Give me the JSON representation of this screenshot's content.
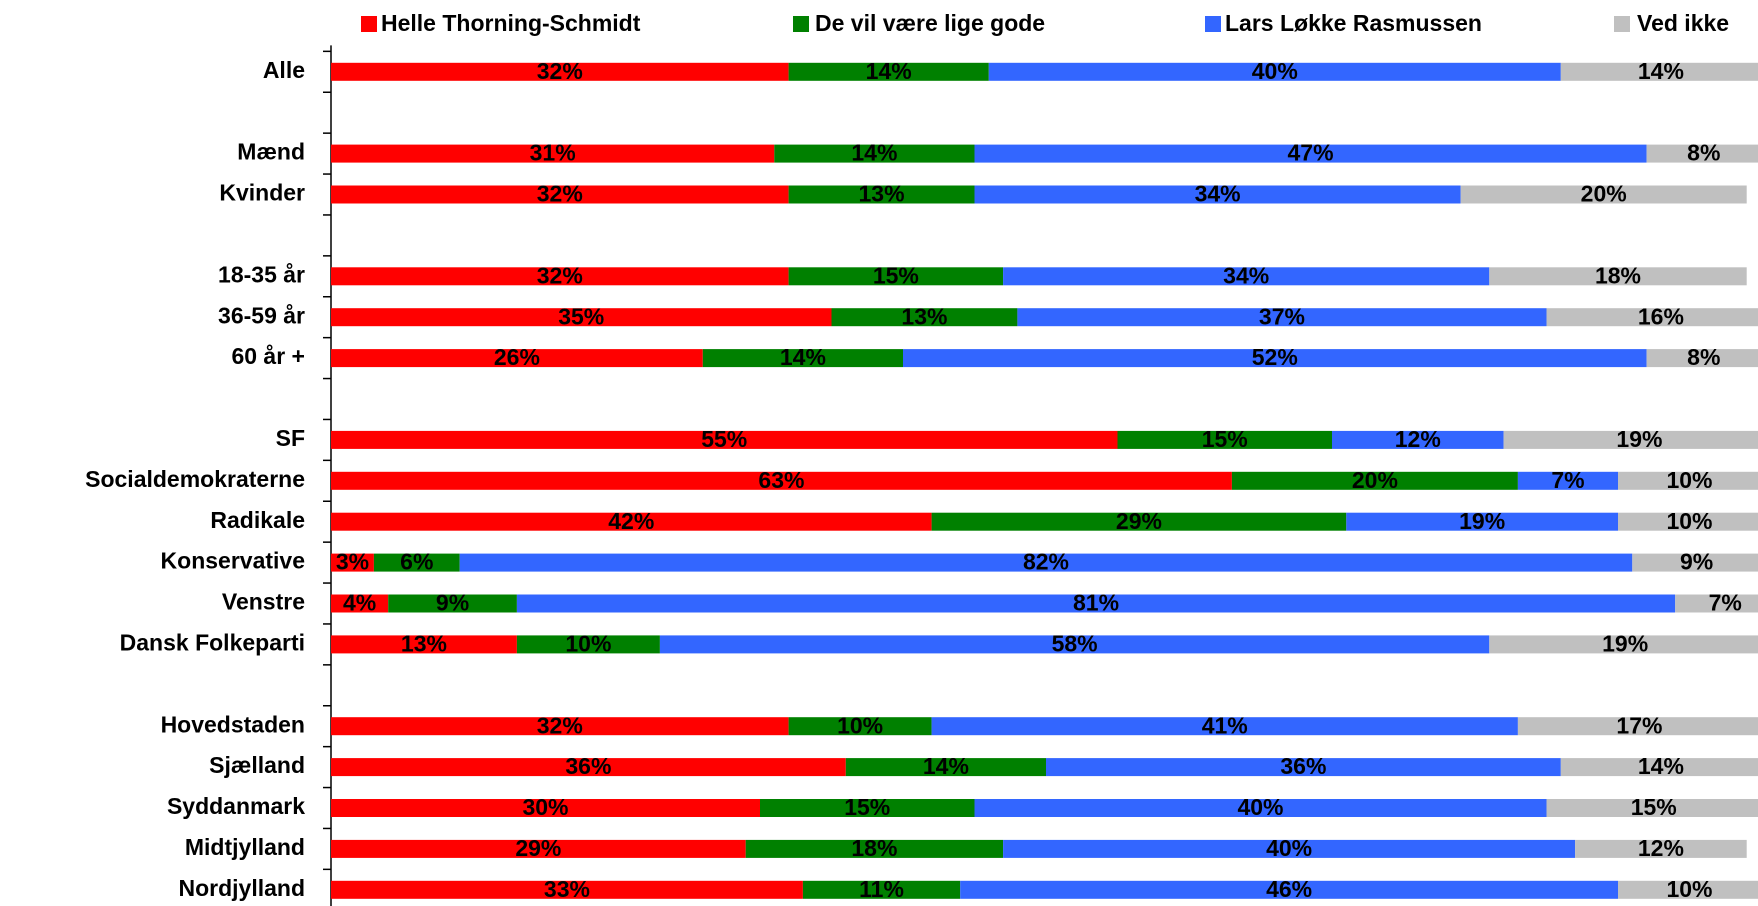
{
  "chart_data": {
    "type": "stacked-barh",
    "categories": [
      "Alle",
      null,
      "Mænd",
      "Kvinder",
      null,
      "18-35 år",
      "36-59 år",
      "60 år +",
      null,
      "SF",
      "Socialdemokraterne",
      "Radikale",
      "Konservative",
      "Venstre",
      "Dansk Folkeparti",
      null,
      "Hovedstaden",
      "Sjælland",
      "Syddanmark",
      "Midtjylland",
      "Nordjylland"
    ],
    "series": [
      {
        "name": "Helle Thorning-Schmidt",
        "color": "#ff0000",
        "values": [
          32,
          null,
          31,
          32,
          null,
          32,
          35,
          26,
          null,
          55,
          63,
          42,
          3,
          4,
          13,
          null,
          32,
          36,
          30,
          29,
          33
        ],
        "value_labels": [
          "32%",
          null,
          "31%",
          "32%",
          null,
          "32%",
          "35%",
          "26%",
          null,
          "55%",
          "63%",
          "42%",
          "3%",
          "4%",
          "13%",
          null,
          "32%",
          "36%",
          "30%",
          "29%",
          "33%"
        ]
      },
      {
        "name": "De vil være lige gode",
        "color": "#008000",
        "values": [
          14,
          null,
          14,
          13,
          null,
          15,
          13,
          14,
          null,
          15,
          20,
          29,
          6,
          9,
          10,
          null,
          10,
          14,
          15,
          18,
          11
        ],
        "value_labels": [
          "14%",
          null,
          "14%",
          "13%",
          null,
          "15%",
          "13%",
          "14%",
          null,
          "15%",
          "20%",
          "29%",
          "6%",
          "9%",
          "10%",
          null,
          "10%",
          "14%",
          "15%",
          "18%",
          "11%"
        ]
      },
      {
        "name": "Lars Løkke Rasmussen",
        "color": "#3366ff",
        "values": [
          40,
          null,
          47,
          34,
          null,
          34,
          37,
          52,
          null,
          12,
          7,
          19,
          82,
          81,
          58,
          null,
          41,
          36,
          40,
          40,
          46
        ],
        "value_labels": [
          "40%",
          null,
          "47%",
          "34%",
          null,
          "34%",
          "37%",
          "52%",
          null,
          "12%",
          "7%",
          "19%",
          "82%",
          "81%",
          "58%",
          null,
          "41%",
          "36%",
          "40%",
          "40%",
          "46%"
        ]
      },
      {
        "name": "Ved ikke",
        "color": "#c0c0c0",
        "values": [
          14,
          null,
          8,
          20,
          null,
          18,
          16,
          8,
          null,
          19,
          10,
          10,
          9,
          7,
          19,
          null,
          17,
          14,
          15,
          12,
          10
        ],
        "value_labels": [
          "14%",
          null,
          "8%",
          "20%",
          null,
          "18%",
          "16%",
          "8%",
          null,
          "19%",
          "10%",
          "10%",
          "9%",
          "7%",
          "19%",
          null,
          "17%",
          "14%",
          "15%",
          "12%",
          "10%"
        ]
      }
    ],
    "xlim": [
      0,
      100
    ],
    "legend": "top"
  }
}
